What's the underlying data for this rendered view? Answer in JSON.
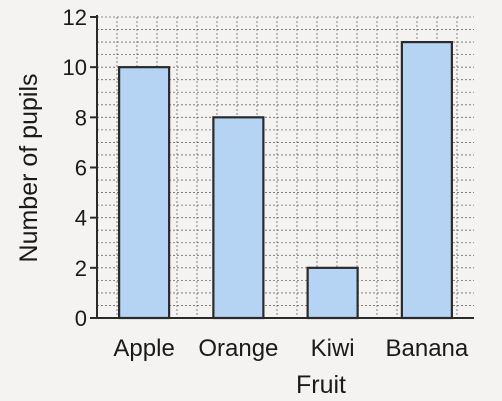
{
  "chart_data": {
    "type": "bar",
    "title": "",
    "xlabel": "Fruit",
    "ylabel": "Number of pupils",
    "categories": [
      "Apple",
      "Orange",
      "Kiwi",
      "Banana"
    ],
    "values": [
      10,
      8,
      2,
      11
    ],
    "ylim": [
      0,
      12
    ],
    "yticks": [
      0,
      2,
      4,
      6,
      8,
      10,
      12
    ],
    "minor_step": 0.5,
    "grid": true,
    "bar_fill": "#b5d3f2",
    "bar_stroke": "#2a2a2a",
    "grid_color": "#6b6b6b",
    "axis_color": "#2a2a2a"
  }
}
